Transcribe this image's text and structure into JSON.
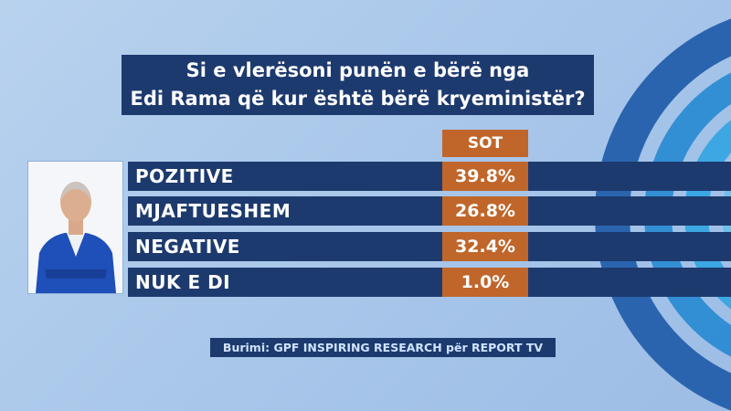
{
  "title": {
    "lines": [
      "Si e vlerësoni punën e bërë nga",
      "Edi Rama që kur është bërë kryeministër?"
    ]
  },
  "table": {
    "header": "SOT",
    "rows": [
      [
        "POZITIVE",
        "39.8%"
      ],
      [
        "MJAFTUESHEM",
        "26.8%"
      ],
      [
        "NEGATIVE",
        "32.4%"
      ],
      [
        "NUK E DI",
        "1.0%"
      ]
    ]
  },
  "source": "Burimi: GPF INSPIRING RESEARCH për REPORT TV"
}
